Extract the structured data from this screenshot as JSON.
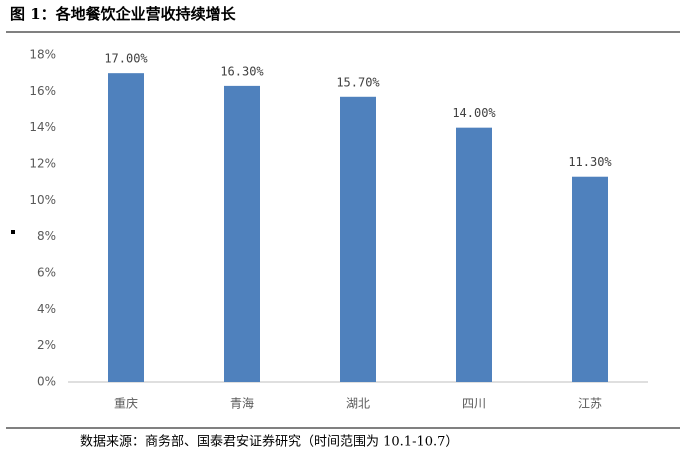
{
  "chart_data": {
    "type": "bar",
    "title": "图 1：各地餐饮企业营收持续增长",
    "categories": [
      "重庆",
      "青海",
      "湖北",
      "四川",
      "江苏"
    ],
    "values": [
      17.0,
      16.3,
      15.7,
      14.0,
      11.3
    ],
    "value_labels": [
      "17.00%",
      "16.30%",
      "15.70%",
      "14.00%",
      "11.30%"
    ],
    "color": "#4f81bd",
    "ylim": [
      0,
      18
    ],
    "yticks": [
      {
        "value": 0,
        "label": "0%"
      },
      {
        "value": 2,
        "label": "2%"
      },
      {
        "value": 4,
        "label": "4%"
      },
      {
        "value": 6,
        "label": "6%"
      },
      {
        "value": 8,
        "label": "8%"
      },
      {
        "value": 10,
        "label": "10%"
      },
      {
        "value": 12,
        "label": "12%"
      },
      {
        "value": 14,
        "label": "14%"
      },
      {
        "value": 16,
        "label": "16%"
      },
      {
        "value": 18,
        "label": "18%"
      }
    ],
    "grid": false,
    "source": "数据来源：商务部、国泰君安证券研究（时间范围为 10.1-10.7）"
  }
}
